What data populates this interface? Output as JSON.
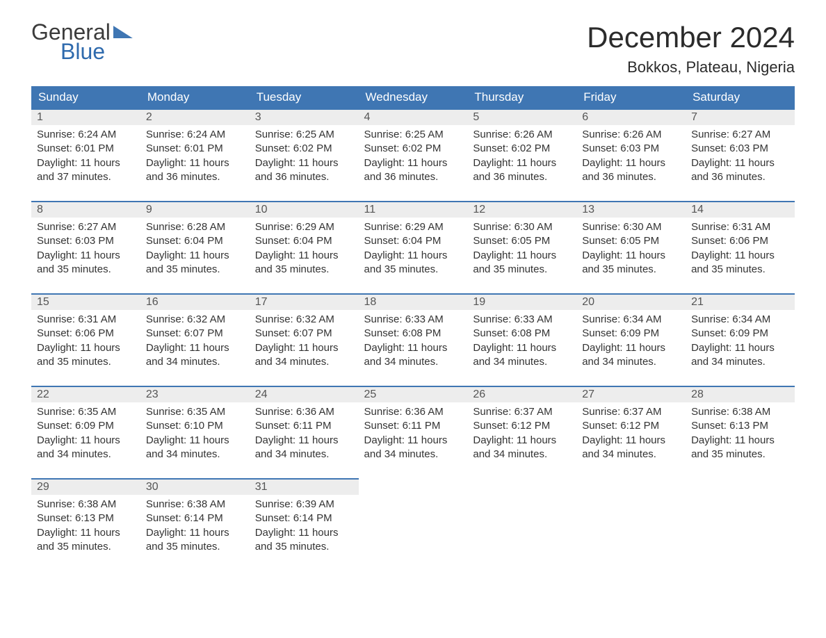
{
  "brand": {
    "word1": "General",
    "word2": "Blue"
  },
  "title": "December 2024",
  "location": "Bokkos, Plateau, Nigeria",
  "colors": {
    "header_bg": "#3f76b3",
    "header_text": "#ffffff",
    "daynum_bg": "#ededed",
    "daynum_border": "#3f76b3",
    "body_text": "#333333",
    "page_bg": "#ffffff"
  },
  "weekdays": [
    "Sunday",
    "Monday",
    "Tuesday",
    "Wednesday",
    "Thursday",
    "Friday",
    "Saturday"
  ],
  "weeks": [
    [
      {
        "n": "1",
        "sunrise": "6:24 AM",
        "sunset": "6:01 PM",
        "daylight": "11 hours and 37 minutes."
      },
      {
        "n": "2",
        "sunrise": "6:24 AM",
        "sunset": "6:01 PM",
        "daylight": "11 hours and 36 minutes."
      },
      {
        "n": "3",
        "sunrise": "6:25 AM",
        "sunset": "6:02 PM",
        "daylight": "11 hours and 36 minutes."
      },
      {
        "n": "4",
        "sunrise": "6:25 AM",
        "sunset": "6:02 PM",
        "daylight": "11 hours and 36 minutes."
      },
      {
        "n": "5",
        "sunrise": "6:26 AM",
        "sunset": "6:02 PM",
        "daylight": "11 hours and 36 minutes."
      },
      {
        "n": "6",
        "sunrise": "6:26 AM",
        "sunset": "6:03 PM",
        "daylight": "11 hours and 36 minutes."
      },
      {
        "n": "7",
        "sunrise": "6:27 AM",
        "sunset": "6:03 PM",
        "daylight": "11 hours and 36 minutes."
      }
    ],
    [
      {
        "n": "8",
        "sunrise": "6:27 AM",
        "sunset": "6:03 PM",
        "daylight": "11 hours and 35 minutes."
      },
      {
        "n": "9",
        "sunrise": "6:28 AM",
        "sunset": "6:04 PM",
        "daylight": "11 hours and 35 minutes."
      },
      {
        "n": "10",
        "sunrise": "6:29 AM",
        "sunset": "6:04 PM",
        "daylight": "11 hours and 35 minutes."
      },
      {
        "n": "11",
        "sunrise": "6:29 AM",
        "sunset": "6:04 PM",
        "daylight": "11 hours and 35 minutes."
      },
      {
        "n": "12",
        "sunrise": "6:30 AM",
        "sunset": "6:05 PM",
        "daylight": "11 hours and 35 minutes."
      },
      {
        "n": "13",
        "sunrise": "6:30 AM",
        "sunset": "6:05 PM",
        "daylight": "11 hours and 35 minutes."
      },
      {
        "n": "14",
        "sunrise": "6:31 AM",
        "sunset": "6:06 PM",
        "daylight": "11 hours and 35 minutes."
      }
    ],
    [
      {
        "n": "15",
        "sunrise": "6:31 AM",
        "sunset": "6:06 PM",
        "daylight": "11 hours and 35 minutes."
      },
      {
        "n": "16",
        "sunrise": "6:32 AM",
        "sunset": "6:07 PM",
        "daylight": "11 hours and 34 minutes."
      },
      {
        "n": "17",
        "sunrise": "6:32 AM",
        "sunset": "6:07 PM",
        "daylight": "11 hours and 34 minutes."
      },
      {
        "n": "18",
        "sunrise": "6:33 AM",
        "sunset": "6:08 PM",
        "daylight": "11 hours and 34 minutes."
      },
      {
        "n": "19",
        "sunrise": "6:33 AM",
        "sunset": "6:08 PM",
        "daylight": "11 hours and 34 minutes."
      },
      {
        "n": "20",
        "sunrise": "6:34 AM",
        "sunset": "6:09 PM",
        "daylight": "11 hours and 34 minutes."
      },
      {
        "n": "21",
        "sunrise": "6:34 AM",
        "sunset": "6:09 PM",
        "daylight": "11 hours and 34 minutes."
      }
    ],
    [
      {
        "n": "22",
        "sunrise": "6:35 AM",
        "sunset": "6:09 PM",
        "daylight": "11 hours and 34 minutes."
      },
      {
        "n": "23",
        "sunrise": "6:35 AM",
        "sunset": "6:10 PM",
        "daylight": "11 hours and 34 minutes."
      },
      {
        "n": "24",
        "sunrise": "6:36 AM",
        "sunset": "6:11 PM",
        "daylight": "11 hours and 34 minutes."
      },
      {
        "n": "25",
        "sunrise": "6:36 AM",
        "sunset": "6:11 PM",
        "daylight": "11 hours and 34 minutes."
      },
      {
        "n": "26",
        "sunrise": "6:37 AM",
        "sunset": "6:12 PM",
        "daylight": "11 hours and 34 minutes."
      },
      {
        "n": "27",
        "sunrise": "6:37 AM",
        "sunset": "6:12 PM",
        "daylight": "11 hours and 34 minutes."
      },
      {
        "n": "28",
        "sunrise": "6:38 AM",
        "sunset": "6:13 PM",
        "daylight": "11 hours and 35 minutes."
      }
    ],
    [
      {
        "n": "29",
        "sunrise": "6:38 AM",
        "sunset": "6:13 PM",
        "daylight": "11 hours and 35 minutes."
      },
      {
        "n": "30",
        "sunrise": "6:38 AM",
        "sunset": "6:14 PM",
        "daylight": "11 hours and 35 minutes."
      },
      {
        "n": "31",
        "sunrise": "6:39 AM",
        "sunset": "6:14 PM",
        "daylight": "11 hours and 35 minutes."
      },
      null,
      null,
      null,
      null
    ]
  ],
  "labels": {
    "sunrise": "Sunrise:",
    "sunset": "Sunset:",
    "daylight": "Daylight:"
  }
}
